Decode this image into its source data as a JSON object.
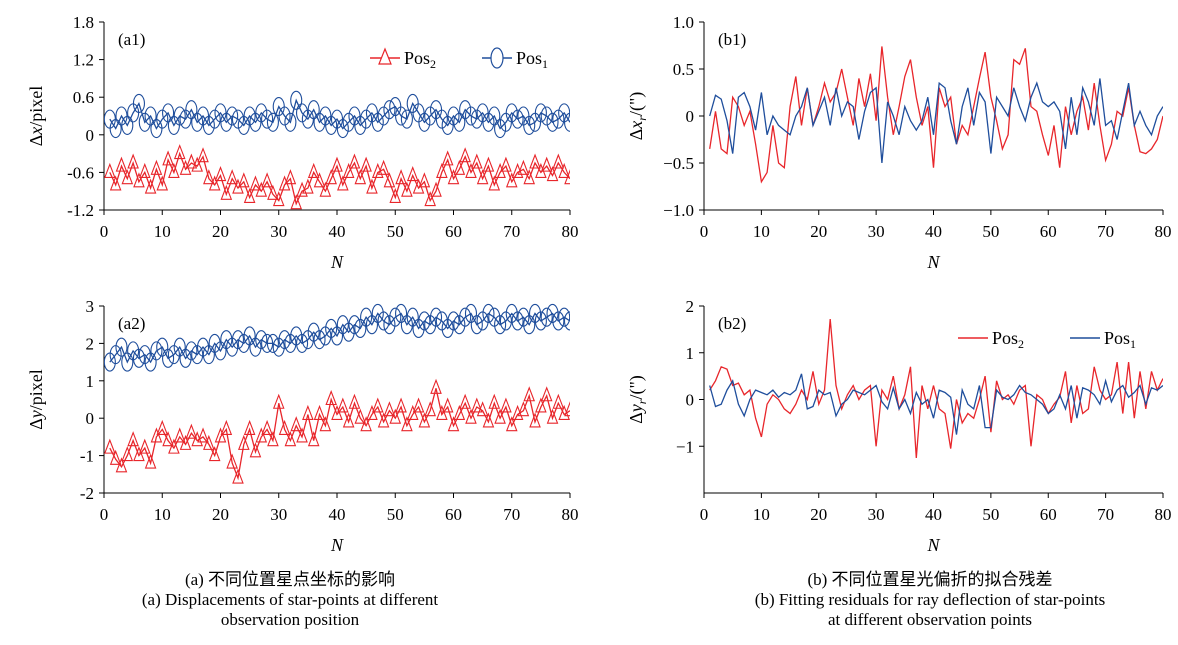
{
  "colors": {
    "pos2": "#e8262b",
    "pos1": "#1f4e9c"
  },
  "captions": {
    "a_cn": "(a) 不同位置星点坐标的影响",
    "a_en1": "(a) Displacements of star-points at different",
    "a_en2": "observation position",
    "b_cn": "(b) 不同位置星光偏折的拟合残差",
    "b_en1": "(b) Fitting residuals for ray deflection of star-points",
    "b_en2": "at different observation points"
  },
  "chart_data": [
    {
      "type": "line",
      "panel": "(a1)",
      "marker_series": true,
      "xlabel": "N",
      "ylabel": "Δx/pixel",
      "xlim": [
        0,
        80
      ],
      "ylim": [
        -1.2,
        1.8
      ],
      "xticks": [
        "0",
        "10",
        "20",
        "30",
        "40",
        "50",
        "60",
        "70",
        "80"
      ],
      "yticks": [
        "-1.2",
        "-0.6",
        "0",
        "0.6",
        "1.2",
        "1.8"
      ],
      "legend": [
        "Pos2",
        "Pos1"
      ],
      "x": [
        1,
        2,
        3,
        4,
        5,
        6,
        7,
        8,
        9,
        10,
        11,
        12,
        13,
        14,
        15,
        16,
        17,
        18,
        19,
        20,
        21,
        22,
        23,
        24,
        25,
        26,
        27,
        28,
        29,
        30,
        31,
        32,
        33,
        34,
        35,
        36,
        37,
        38,
        39,
        40,
        41,
        42,
        43,
        44,
        45,
        46,
        47,
        48,
        49,
        50,
        51,
        52,
        53,
        54,
        55,
        56,
        57,
        58,
        59,
        60,
        61,
        62,
        63,
        64,
        65,
        66,
        67,
        68,
        69,
        70,
        71,
        72,
        73,
        74,
        75,
        76,
        77,
        78,
        79,
        80
      ],
      "series": [
        {
          "name": "Pos2",
          "values": [
            -0.6,
            -0.8,
            -0.5,
            -0.7,
            -0.45,
            -0.75,
            -0.6,
            -0.85,
            -0.55,
            -0.8,
            -0.4,
            -0.6,
            -0.3,
            -0.55,
            -0.45,
            -0.5,
            -0.35,
            -0.7,
            -0.8,
            -0.65,
            -0.95,
            -0.7,
            -0.85,
            -0.75,
            -1.0,
            -0.8,
            -0.9,
            -0.75,
            -0.95,
            -1.05,
            -0.8,
            -0.7,
            -1.1,
            -0.9,
            -0.85,
            -0.6,
            -0.75,
            -0.9,
            -0.7,
            -0.5,
            -0.8,
            -0.6,
            -0.45,
            -0.7,
            -0.5,
            -0.85,
            -0.6,
            -0.55,
            -0.75,
            -1.0,
            -0.7,
            -0.9,
            -0.65,
            -0.85,
            -0.75,
            -1.05,
            -0.9,
            -0.6,
            -0.4,
            -0.7,
            -0.55,
            -0.35,
            -0.6,
            -0.45,
            -0.7,
            -0.5,
            -0.8,
            -0.6,
            -0.5,
            -0.75,
            -0.6,
            -0.55,
            -0.7,
            -0.45,
            -0.6,
            -0.5,
            -0.65,
            -0.45,
            -0.6,
            -0.7
          ]
        },
        {
          "name": "Pos1",
          "values": [
            0.25,
            0.1,
            0.3,
            0.15,
            0.35,
            0.5,
            0.2,
            0.3,
            0.1,
            0.25,
            0.35,
            0.15,
            0.3,
            0.25,
            0.4,
            0.2,
            0.3,
            0.15,
            0.25,
            0.35,
            0.2,
            0.3,
            0.25,
            0.15,
            0.3,
            0.2,
            0.35,
            0.25,
            0.2,
            0.45,
            0.3,
            0.2,
            0.55,
            0.35,
            0.25,
            0.4,
            0.2,
            0.3,
            0.15,
            0.25,
            0.1,
            0.2,
            0.3,
            0.15,
            0.25,
            0.35,
            0.2,
            0.3,
            0.4,
            0.45,
            0.3,
            0.25,
            0.5,
            0.35,
            0.2,
            0.3,
            0.4,
            0.25,
            0.15,
            0.3,
            0.2,
            0.4,
            0.3,
            0.25,
            0.35,
            0.2,
            0.3,
            0.1,
            0.2,
            0.35,
            0.25,
            0.3,
            0.15,
            0.2,
            0.35,
            0.3,
            0.2,
            0.25,
            0.35,
            0.2
          ]
        }
      ]
    },
    {
      "type": "line",
      "panel": "(a2)",
      "marker_series": true,
      "xlabel": "N",
      "ylabel": "Δy/pixel",
      "xlim": [
        0,
        80
      ],
      "ylim": [
        -2,
        3
      ],
      "xticks": [
        "0",
        "10",
        "20",
        "30",
        "40",
        "50",
        "60",
        "70",
        "80"
      ],
      "yticks": [
        "-2",
        "-1",
        "0",
        "1",
        "2",
        "3"
      ],
      "legend": [],
      "x": [
        1,
        2,
        3,
        4,
        5,
        6,
        7,
        8,
        9,
        10,
        11,
        12,
        13,
        14,
        15,
        16,
        17,
        18,
        19,
        20,
        21,
        22,
        23,
        24,
        25,
        26,
        27,
        28,
        29,
        30,
        31,
        32,
        33,
        34,
        35,
        36,
        37,
        38,
        39,
        40,
        41,
        42,
        43,
        44,
        45,
        46,
        47,
        48,
        49,
        50,
        51,
        52,
        53,
        54,
        55,
        56,
        57,
        58,
        59,
        60,
        61,
        62,
        63,
        64,
        65,
        66,
        67,
        68,
        69,
        70,
        71,
        72,
        73,
        74,
        75,
        76,
        77,
        78,
        79,
        80
      ],
      "series": [
        {
          "name": "Pos2",
          "values": [
            -0.8,
            -1.1,
            -1.3,
            -1.0,
            -0.6,
            -1.0,
            -0.8,
            -1.2,
            -0.5,
            -0.3,
            -0.6,
            -0.8,
            -0.5,
            -0.7,
            -0.4,
            -0.6,
            -0.5,
            -0.7,
            -1.0,
            -0.5,
            -0.3,
            -1.2,
            -1.6,
            -0.7,
            -0.3,
            -0.9,
            -0.5,
            -0.3,
            -0.6,
            0.4,
            -0.3,
            -0.6,
            -0.2,
            -0.5,
            0.1,
            -0.6,
            0.1,
            -0.2,
            0.5,
            0.1,
            0.3,
            -0.1,
            0.4,
            0.0,
            -0.2,
            0.1,
            0.3,
            -0.1,
            0.2,
            0.0,
            0.3,
            -0.2,
            0.1,
            0.3,
            -0.1,
            0.2,
            0.8,
            0.1,
            0.3,
            -0.2,
            0.1,
            0.4,
            0.0,
            0.3,
            0.2,
            -0.1,
            0.4,
            0.0,
            0.3,
            -0.2,
            0.1,
            0.2,
            0.6,
            -0.1,
            0.3,
            0.6,
            0.0,
            0.4,
            0.1,
            0.2
          ]
        },
        {
          "name": "Pos1",
          "values": [
            1.5,
            1.7,
            1.9,
            1.5,
            1.8,
            1.6,
            1.7,
            1.5,
            1.8,
            1.9,
            1.6,
            1.7,
            1.9,
            1.6,
            1.8,
            1.7,
            1.9,
            1.7,
            2.0,
            1.8,
            2.1,
            1.9,
            2.1,
            2.0,
            2.2,
            1.9,
            2.1,
            2.0,
            2.0,
            1.9,
            2.1,
            2.0,
            2.2,
            2.0,
            2.1,
            2.3,
            2.1,
            2.2,
            2.4,
            2.2,
            2.5,
            2.3,
            2.5,
            2.4,
            2.7,
            2.5,
            2.8,
            2.6,
            2.5,
            2.7,
            2.8,
            2.5,
            2.7,
            2.4,
            2.6,
            2.5,
            2.7,
            2.6,
            2.4,
            2.6,
            2.5,
            2.7,
            2.8,
            2.5,
            2.6,
            2.8,
            2.7,
            2.5,
            2.6,
            2.8,
            2.6,
            2.7,
            2.5,
            2.8,
            2.6,
            2.7,
            2.8,
            2.6,
            2.7,
            2.6
          ]
        }
      ]
    },
    {
      "type": "line",
      "panel": "(b1)",
      "marker_series": false,
      "xlabel": "N",
      "ylabel": "Δx_r/(\")",
      "xlim": [
        0,
        80
      ],
      "ylim": [
        -1.0,
        1.0
      ],
      "xticks": [
        "0",
        "10",
        "20",
        "30",
        "40",
        "50",
        "60",
        "70",
        "80"
      ],
      "yticks": [
        "−1.0",
        "−0.5",
        "0",
        "0.5",
        "1.0"
      ],
      "legend": [],
      "x": [
        1,
        2,
        3,
        4,
        5,
        6,
        7,
        8,
        9,
        10,
        11,
        12,
        13,
        14,
        15,
        16,
        17,
        18,
        19,
        20,
        21,
        22,
        23,
        24,
        25,
        26,
        27,
        28,
        29,
        30,
        31,
        32,
        33,
        34,
        35,
        36,
        37,
        38,
        39,
        40,
        41,
        42,
        43,
        44,
        45,
        46,
        47,
        48,
        49,
        50,
        51,
        52,
        53,
        54,
        55,
        56,
        57,
        58,
        59,
        60,
        61,
        62,
        63,
        64,
        65,
        66,
        67,
        68,
        69,
        70,
        71,
        72,
        73,
        74,
        75,
        76,
        77,
        78,
        79,
        80
      ],
      "series": [
        {
          "name": "Pos2",
          "values": [
            -0.35,
            0.05,
            -0.35,
            -0.4,
            0.2,
            0.1,
            -0.1,
            0.05,
            -0.3,
            -0.7,
            -0.6,
            -0.1,
            -0.5,
            -0.55,
            0.1,
            0.42,
            -0.1,
            0.3,
            -0.1,
            0.1,
            0.35,
            0.15,
            0.25,
            0.5,
            0.2,
            -0.1,
            0.4,
            0.1,
            0.45,
            -0.05,
            0.74,
            0.2,
            -0.2,
            0.1,
            0.42,
            0.6,
            0.2,
            -0.1,
            0.1,
            -0.55,
            0.3,
            0.1,
            0.2,
            -0.3,
            -0.1,
            -0.2,
            0.1,
            0.4,
            0.68,
            0.2,
            -0.05,
            -0.35,
            -0.2,
            0.6,
            0.55,
            0.72,
            0.1,
            0.05,
            -0.2,
            -0.42,
            -0.1,
            -0.55,
            0.1,
            -0.2,
            0.05,
            0.2,
            -0.15,
            0.35,
            -0.1,
            -0.47,
            -0.3,
            0.05,
            0.0,
            0.3,
            -0.1,
            -0.38,
            -0.4,
            -0.35,
            -0.25,
            0.0
          ]
        },
        {
          "name": "Pos1",
          "values": [
            0.0,
            0.22,
            0.18,
            -0.05,
            -0.4,
            0.2,
            0.25,
            0.1,
            -0.15,
            0.25,
            -0.2,
            0.0,
            -0.1,
            -0.15,
            -0.2,
            0.0,
            0.1,
            0.3,
            -0.1,
            0.05,
            0.2,
            -0.1,
            0.3,
            0.0,
            0.15,
            0.1,
            -0.25,
            0.05,
            0.25,
            0.3,
            -0.5,
            0.15,
            0.0,
            -0.2,
            0.1,
            -0.05,
            -0.15,
            -0.05,
            0.2,
            -0.2,
            0.35,
            0.3,
            -0.05,
            -0.3,
            0.1,
            0.3,
            -0.1,
            0.25,
            0.15,
            -0.4,
            0.2,
            0.1,
            0.0,
            0.3,
            0.1,
            -0.05,
            0.2,
            0.35,
            0.15,
            0.1,
            0.15,
            0.05,
            -0.35,
            0.2,
            -0.2,
            0.3,
            0.15,
            -0.1,
            0.4,
            -0.1,
            -0.05,
            -0.25,
            0.05,
            0.35,
            -0.1,
            0.05,
            -0.1,
            -0.2,
            0.0,
            0.1
          ]
        }
      ]
    },
    {
      "type": "line",
      "panel": "(b2)",
      "marker_series": false,
      "xlabel": "N",
      "ylabel": "Δy_r/(\")",
      "xlim": [
        0,
        80
      ],
      "ylim": [
        -2,
        2
      ],
      "xticks": [
        "0",
        "10",
        "20",
        "30",
        "40",
        "50",
        "60",
        "70",
        "80"
      ],
      "yticks": [
        "−1",
        "0",
        "1",
        "2"
      ],
      "legend": [
        "Pos2",
        "Pos1"
      ],
      "x": [
        1,
        2,
        3,
        4,
        5,
        6,
        7,
        8,
        9,
        10,
        11,
        12,
        13,
        14,
        15,
        16,
        17,
        18,
        19,
        20,
        21,
        22,
        23,
        24,
        25,
        26,
        27,
        28,
        29,
        30,
        31,
        32,
        33,
        34,
        35,
        36,
        37,
        38,
        39,
        40,
        41,
        42,
        43,
        44,
        45,
        46,
        47,
        48,
        49,
        50,
        51,
        52,
        53,
        54,
        55,
        56,
        57,
        58,
        59,
        60,
        61,
        62,
        63,
        64,
        65,
        66,
        67,
        68,
        69,
        70,
        71,
        72,
        73,
        74,
        75,
        76,
        77,
        78,
        79,
        80
      ],
      "series": [
        {
          "name": "Pos2",
          "values": [
            0.2,
            0.4,
            0.7,
            0.65,
            0.3,
            0.35,
            0.1,
            0.2,
            -0.4,
            -0.8,
            -0.1,
            0.1,
            0.0,
            -0.2,
            -0.3,
            -0.1,
            0.2,
            0.0,
            0.6,
            -0.1,
            0.2,
            1.72,
            0.3,
            -0.2,
            0.1,
            0.3,
            0.0,
            0.2,
            0.3,
            -1.0,
            0.2,
            0.0,
            0.5,
            -0.2,
            0.1,
            0.7,
            -1.25,
            0.3,
            -0.2,
            0.3,
            -0.2,
            -0.3,
            -1.05,
            0.0,
            -0.5,
            -0.3,
            -0.4,
            0.0,
            0.5,
            -0.7,
            0.4,
            0.0,
            0.1,
            -0.1,
            0.2,
            0.3,
            -1.0,
            0.1,
            0.0,
            -0.3,
            -0.1,
            0.05,
            0.6,
            -0.5,
            0.3,
            -0.3,
            -0.2,
            0.7,
            0.2,
            0.0,
            0.1,
            0.8,
            -0.3,
            0.8,
            -0.4,
            0.6,
            -0.2,
            0.6,
            0.2,
            0.45
          ]
        },
        {
          "name": "Pos1",
          "values": [
            0.3,
            -0.15,
            -0.1,
            0.2,
            0.4,
            -0.1,
            -0.35,
            0.0,
            0.2,
            0.15,
            0.1,
            0.2,
            0.05,
            0.15,
            0.1,
            0.2,
            0.55,
            -0.2,
            -0.15,
            0.2,
            0.1,
            0.15,
            -0.35,
            -0.1,
            0.0,
            0.2,
            0.15,
            0.1,
            0.2,
            0.3,
            -0.05,
            -0.2,
            0.25,
            -0.2,
            0.0,
            -0.3,
            0.15,
            -0.1,
            0.0,
            -0.4,
            0.2,
            0.15,
            0.05,
            -0.75,
            0.2,
            -0.1,
            -0.2,
            0.3,
            -0.6,
            -0.6,
            0.2,
            0.05,
            0.0,
            0.1,
            0.3,
            0.15,
            0.1,
            0.0,
            -0.1,
            -0.3,
            -0.2,
            0.1,
            -0.2,
            0.3,
            -0.4,
            0.25,
            0.2,
            0.1,
            -0.1,
            0.4,
            -0.05,
            0.2,
            0.3,
            0.05,
            0.15,
            0.3,
            -0.1,
            0.25,
            0.2,
            0.3
          ]
        }
      ]
    }
  ]
}
